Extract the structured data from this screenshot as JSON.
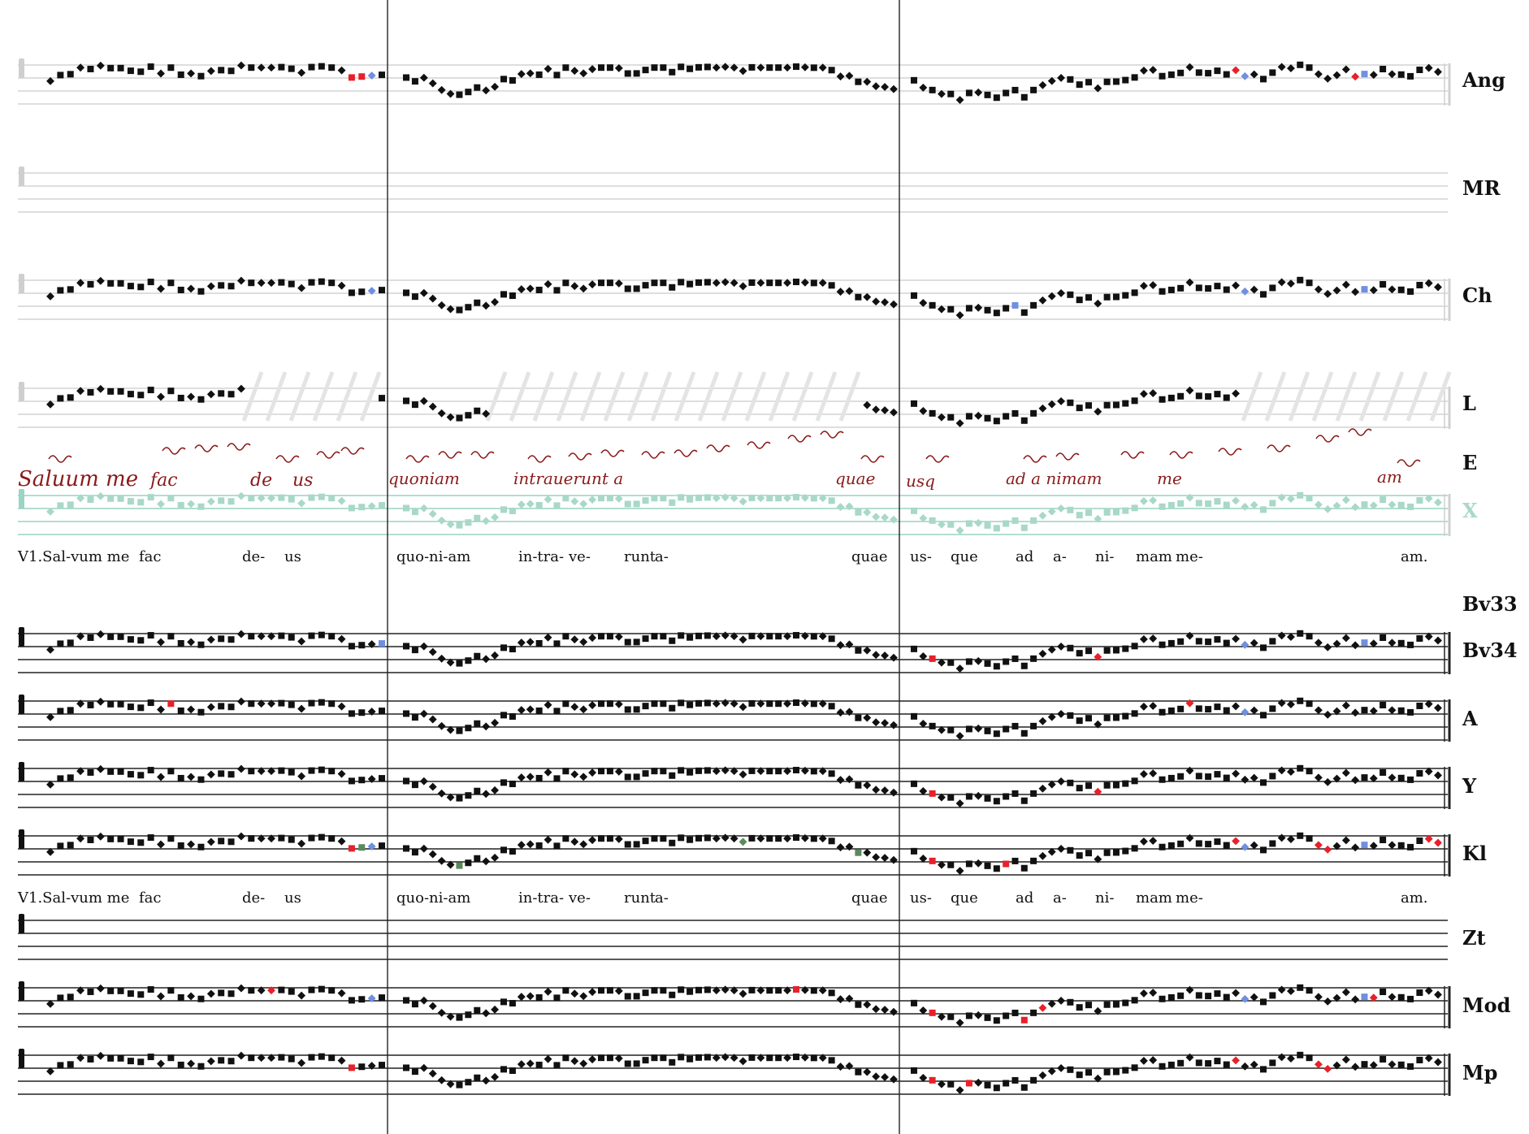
{
  "sigla": [
    {
      "key": "Ang",
      "label": "Ang"
    },
    {
      "key": "MR",
      "label": "MR"
    },
    {
      "key": "Ch",
      "label": "Ch"
    },
    {
      "key": "L",
      "label": "L"
    },
    {
      "key": "E",
      "label": "E"
    },
    {
      "key": "X",
      "label": "X"
    },
    {
      "key": "Bv33",
      "label": "Bv33"
    },
    {
      "key": "Bv34",
      "label": "Bv34"
    },
    {
      "key": "A",
      "label": "A"
    },
    {
      "key": "Y",
      "label": "Y"
    },
    {
      "key": "Kl",
      "label": "Kl"
    },
    {
      "key": "Zt",
      "label": "Zt"
    },
    {
      "key": "Mod",
      "label": "Mod"
    },
    {
      "key": "Mp",
      "label": "Mp"
    }
  ],
  "lyrics_top": [
    "V1.Sal-vum me",
    "fac",
    "de-",
    "us",
    "quo-ni-am",
    "in-tra-",
    "ve-",
    "runt",
    "a-",
    "quae",
    "us-",
    "que",
    "ad",
    "a-",
    "ni-",
    "mam",
    "me-",
    "am."
  ],
  "lyrics_bottom": [
    "V1.Sal-vum me",
    "fac",
    "de-",
    "us",
    "quo-ni-am",
    "in-tra-",
    "ve-",
    "runt",
    "a-",
    "quae",
    "us-",
    "que",
    "ad",
    "a-",
    "ni-",
    "mam",
    "me-",
    "am."
  ],
  "manuscript_text": [
    "Saluum me",
    "fac",
    "de",
    "us",
    "quoniam",
    "intrauerunt a",
    "quae",
    "usq",
    "ad a nimam",
    "me",
    "am"
  ],
  "colors": {
    "neume": "#111111",
    "variant_red": "#e8202a",
    "variant_blue": "#6f8fe0",
    "variant_green": "#5a8a5a",
    "manuscript_red": "#8b1a1a",
    "x_teal": "#a8d8c8"
  }
}
